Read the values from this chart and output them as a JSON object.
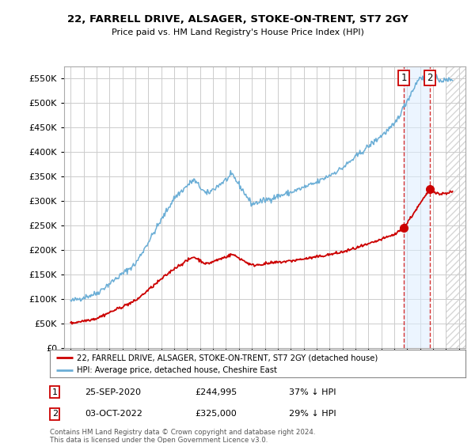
{
  "title": "22, FARRELL DRIVE, ALSAGER, STOKE-ON-TRENT, ST7 2GY",
  "subtitle": "Price paid vs. HM Land Registry's House Price Index (HPI)",
  "ylim": [
    0,
    575000
  ],
  "yticks": [
    0,
    50000,
    100000,
    150000,
    200000,
    250000,
    300000,
    350000,
    400000,
    450000,
    500000,
    550000
  ],
  "bg_color": "#ffffff",
  "grid_color": "#cccccc",
  "hpi_color": "#6baed6",
  "price_color": "#cc0000",
  "legend_label_price": "22, FARRELL DRIVE, ALSAGER, STOKE-ON-TRENT, ST7 2GY (detached house)",
  "legend_label_hpi": "HPI: Average price, detached house, Cheshire East",
  "annotation1_date": "25-SEP-2020",
  "annotation1_price": "£244,995",
  "annotation1_note": "37% ↓ HPI",
  "annotation2_date": "03-OCT-2022",
  "annotation2_price": "£325,000",
  "annotation2_note": "29% ↓ HPI",
  "footer": "Contains HM Land Registry data © Crown copyright and database right 2024.\nThis data is licensed under the Open Government Licence v3.0.",
  "sale1_x": 2020.73,
  "sale1_y": 244995,
  "sale2_x": 2022.75,
  "sale2_y": 325000,
  "highlight_shade_color": "#ddeeff",
  "xlim_left": 1994.5,
  "xlim_right": 2025.5,
  "hatch_start": 2024.0
}
